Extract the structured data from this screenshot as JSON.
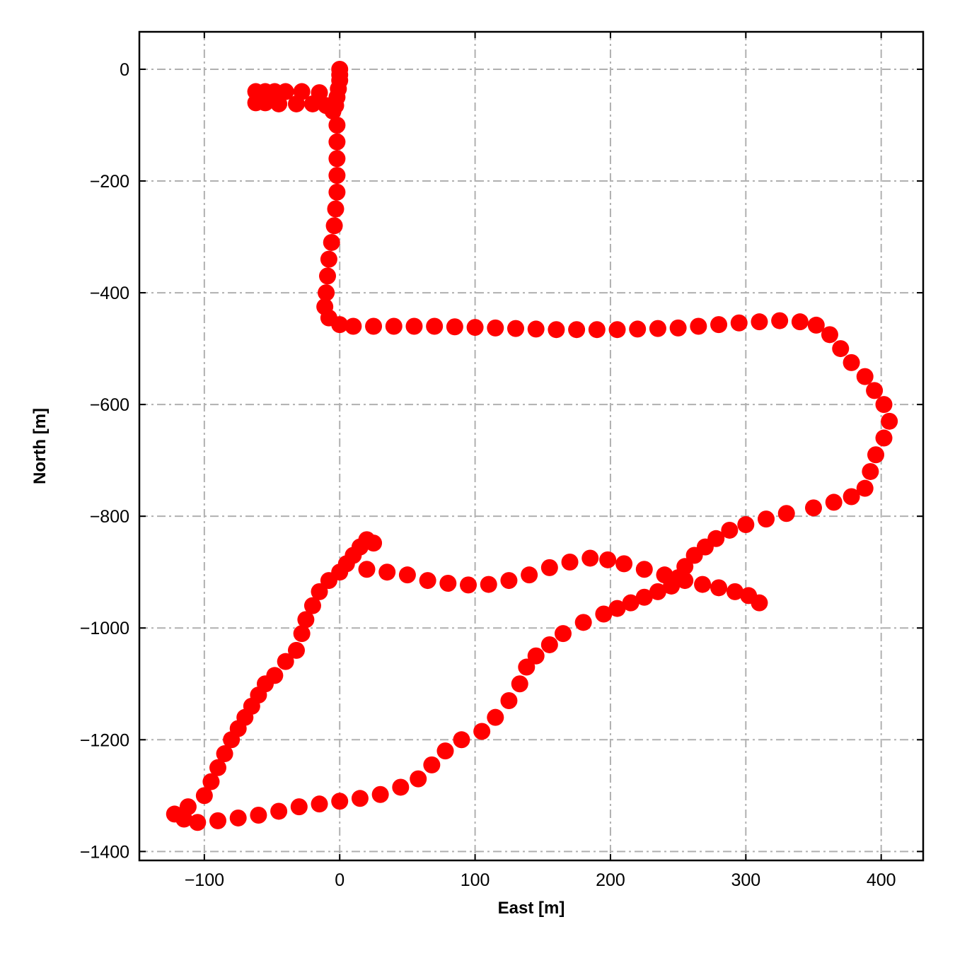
{
  "chart_data": {
    "type": "scatter",
    "xlabel": "East [m]",
    "ylabel": "North [m]",
    "color": "#ff0000",
    "grid": true,
    "xlim": [
      -148,
      431
    ],
    "ylim": [
      -1416,
      67
    ],
    "xticks": [
      {
        "value": -100,
        "label": "−100"
      },
      0,
      100,
      200,
      300,
      400
    ],
    "yticks": [
      {
        "value": -1400,
        "label": "−1400"
      },
      {
        "value": -1200,
        "label": "−1200"
      },
      {
        "value": -1000,
        "label": "−1000"
      },
      {
        "value": -800,
        "label": "−800"
      },
      {
        "value": -600,
        "label": "−600"
      },
      {
        "value": -400,
        "label": "−400"
      },
      {
        "value": -200,
        "label": "−200"
      },
      0
    ],
    "x": [
      0,
      0,
      0,
      -1,
      -2,
      -3,
      -5,
      -62,
      -55,
      -48,
      -40,
      -28,
      -15,
      -62,
      -55,
      -45,
      -32,
      -20,
      -10,
      -2,
      -2,
      -2,
      -2,
      -2,
      -3,
      -4,
      -6,
      -8,
      -9,
      -10,
      -11,
      -8,
      0,
      10,
      25,
      40,
      55,
      70,
      85,
      100,
      115,
      130,
      145,
      160,
      175,
      190,
      205,
      220,
      235,
      250,
      265,
      280,
      295,
      310,
      325,
      340,
      352,
      362,
      370,
      378,
      388,
      395,
      402,
      406,
      402,
      396,
      392,
      388,
      378,
      365,
      350,
      330,
      315,
      300,
      288,
      278,
      270,
      262,
      255,
      250,
      245,
      235,
      225,
      215,
      205,
      195,
      180,
      165,
      155,
      145,
      138,
      133,
      125,
      115,
      105,
      90,
      78,
      68,
      58,
      45,
      30,
      15,
      0,
      -15,
      -30,
      -45,
      -60,
      -75,
      -90,
      -105,
      -115,
      -122,
      -112,
      -100,
      -95,
      -90,
      -85,
      -80,
      -75,
      -70,
      -65,
      -60,
      -55,
      -48,
      -40,
      -32,
      -28,
      -25,
      -20,
      -15,
      -8,
      0,
      5,
      10,
      15,
      20,
      25,
      20,
      35,
      50,
      65,
      80,
      95,
      110,
      125,
      140,
      155,
      170,
      185,
      198,
      210,
      225,
      240,
      255,
      268,
      280,
      292,
      302,
      310
    ],
    "y": [
      0,
      -10,
      -20,
      -35,
      -50,
      -65,
      -75,
      -40,
      -40,
      -40,
      -40,
      -40,
      -42,
      -60,
      -60,
      -62,
      -62,
      -62,
      -65,
      -100,
      -130,
      -160,
      -190,
      -220,
      -250,
      -280,
      -310,
      -340,
      -370,
      -400,
      -425,
      -445,
      -457,
      -460,
      -460,
      -460,
      -460,
      -460,
      -461,
      -462,
      -463,
      -464,
      -465,
      -466,
      -466,
      -466,
      -466,
      -465,
      -464,
      -463,
      -460,
      -457,
      -454,
      -452,
      -450,
      -452,
      -458,
      -475,
      -500,
      -525,
      -550,
      -575,
      -600,
      -630,
      -660,
      -690,
      -720,
      -750,
      -765,
      -775,
      -785,
      -795,
      -805,
      -815,
      -825,
      -840,
      -855,
      -870,
      -890,
      -910,
      -925,
      -935,
      -945,
      -955,
      -965,
      -975,
      -990,
      -1010,
      -1030,
      -1050,
      -1070,
      -1100,
      -1130,
      -1160,
      -1185,
      -1200,
      -1220,
      -1245,
      -1270,
      -1285,
      -1298,
      -1305,
      -1310,
      -1315,
      -1320,
      -1328,
      -1335,
      -1340,
      -1345,
      -1348,
      -1342,
      -1333,
      -1320,
      -1300,
      -1275,
      -1250,
      -1225,
      -1200,
      -1180,
      -1160,
      -1140,
      -1120,
      -1100,
      -1085,
      -1060,
      -1040,
      -1010,
      -985,
      -960,
      -935,
      -915,
      -900,
      -885,
      -870,
      -855,
      -842,
      -848,
      -895,
      -900,
      -905,
      -915,
      -920,
      -923,
      -922,
      -915,
      -905,
      -892,
      -882,
      -875,
      -878,
      -885,
      -895,
      -905,
      -915,
      -922,
      -928,
      -935,
      -942,
      -955
    ]
  }
}
